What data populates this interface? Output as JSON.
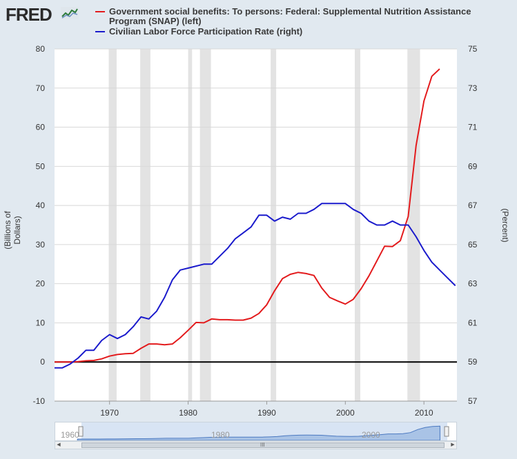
{
  "logo": {
    "text": "FRED"
  },
  "legend": [
    {
      "label": "Government social benefits: To persons: Federal: Supplemental Nutrition Assistance Program (SNAP) (left)",
      "color": "#e31a1c"
    },
    {
      "label": "Civilian Labor Force Participation Rate (right)",
      "color": "#1a1acc"
    }
  ],
  "navigator": {
    "labels": [
      "1960",
      "1980",
      "2000"
    ],
    "scroll_thumb_label": "III"
  },
  "chart_data": {
    "type": "line",
    "x_range": [
      1963,
      2014.2
    ],
    "x_ticks": [
      1970,
      1980,
      1990,
      2000,
      2010
    ],
    "recessions": [
      [
        1969.9,
        1970.9
      ],
      [
        1973.9,
        1975.2
      ],
      [
        1980.0,
        1980.5
      ],
      [
        1981.5,
        1982.9
      ],
      [
        1990.5,
        1991.2
      ],
      [
        2001.2,
        2001.9
      ],
      [
        2007.9,
        2009.5
      ]
    ],
    "left_axis": {
      "label": "(Billions of Dollars)",
      "range": [
        -10,
        80
      ],
      "ticks": [
        -10,
        0,
        10,
        20,
        30,
        40,
        50,
        60,
        70,
        80
      ]
    },
    "right_axis": {
      "label": "(Percent)",
      "range": [
        57,
        75
      ],
      "ticks": [
        57,
        59,
        61,
        63,
        65,
        67,
        69,
        71,
        73,
        75
      ]
    },
    "zero_line": 0,
    "series": [
      {
        "name": "Government social benefits: To persons: Federal: Supplemental Nutrition Assistance Program (SNAP) (left)",
        "axis": "left",
        "color": "#e31a1c",
        "x": [
          1963,
          1964,
          1965,
          1966,
          1967,
          1968,
          1969,
          1970,
          1971,
          1972,
          1973,
          1974,
          1975,
          1976,
          1977,
          1978,
          1979,
          1980,
          1981,
          1982,
          1983,
          1984,
          1985,
          1986,
          1987,
          1988,
          1989,
          1990,
          1991,
          1992,
          1993,
          1994,
          1995,
          1996,
          1997,
          1998,
          1999,
          2000,
          2001,
          2002,
          2003,
          2004,
          2005,
          2006,
          2007,
          2008,
          2009,
          2010,
          2011,
          2012
        ],
        "values": [
          0,
          0,
          0,
          0.1,
          0.3,
          0.4,
          0.8,
          1.5,
          1.9,
          2.1,
          2.2,
          3.5,
          4.6,
          4.6,
          4.4,
          4.6,
          6.2,
          8.1,
          10.1,
          10,
          11,
          10.8,
          10.8,
          10.7,
          10.7,
          11.2,
          12.4,
          14.6,
          18.2,
          21.3,
          22.4,
          22.9,
          22.6,
          22.1,
          18.9,
          16.5,
          15.6,
          14.8,
          16,
          18.7,
          22,
          25.8,
          29.6,
          29.5,
          31,
          37.2,
          55.3,
          66.7,
          73,
          74.9
        ]
      },
      {
        "name": "Civilian Labor Force Participation Rate (right)",
        "axis": "right",
        "color": "#1a1acc",
        "x": [
          1963,
          1964,
          1965,
          1966,
          1967,
          1968,
          1969,
          1970,
          1971,
          1972,
          1973,
          1974,
          1975,
          1976,
          1977,
          1978,
          1979,
          1980,
          1981,
          1982,
          1983,
          1984,
          1985,
          1986,
          1987,
          1988,
          1989,
          1990,
          1991,
          1992,
          1993,
          1994,
          1995,
          1996,
          1997,
          1998,
          1999,
          2000,
          2001,
          2002,
          2003,
          2004,
          2005,
          2006,
          2007,
          2008,
          2009,
          2010,
          2011,
          2012,
          2013,
          2014
        ],
        "values": [
          58.7,
          58.7,
          58.9,
          59.2,
          59.6,
          59.6,
          60.1,
          60.4,
          60.2,
          60.4,
          60.8,
          61.3,
          61.2,
          61.6,
          62.3,
          63.2,
          63.7,
          63.8,
          63.9,
          64,
          64,
          64.4,
          64.8,
          65.3,
          65.6,
          65.9,
          66.5,
          66.5,
          66.2,
          66.4,
          66.3,
          66.6,
          66.6,
          66.8,
          67.1,
          67.1,
          67.1,
          67.1,
          66.8,
          66.6,
          66.2,
          66,
          66,
          66.2,
          66,
          66,
          65.4,
          64.7,
          64.1,
          63.7,
          63.3,
          62.9
        ]
      }
    ]
  }
}
